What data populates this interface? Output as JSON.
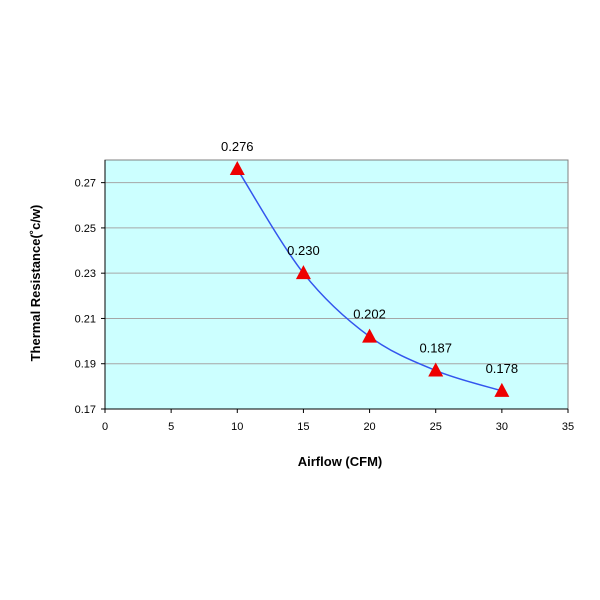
{
  "chart_data": {
    "type": "line",
    "xlabel": "Airflow (CFM)",
    "ylabel": "Thermal Resistance(˚c/w)",
    "xlim": [
      0,
      35
    ],
    "ylim": [
      0.17,
      0.28
    ],
    "x_ticks": [
      0,
      5,
      10,
      15,
      20,
      25,
      30,
      35
    ],
    "x_tick_labels": [
      "0",
      "5",
      "10",
      "15",
      "20",
      "25",
      "30",
      "35"
    ],
    "y_ticks": [
      0.17,
      0.19,
      0.21,
      0.23,
      0.25,
      0.27
    ],
    "y_tick_labels": [
      "0.17",
      "0.19",
      "0.21",
      "0.23",
      "0.25",
      "0.27"
    ],
    "grid": "horizontal",
    "legend": "none",
    "series": [
      {
        "x": [
          10,
          15,
          20,
          25,
          30
        ],
        "y": [
          0.276,
          0.23,
          0.202,
          0.187,
          0.178
        ],
        "data_labels": [
          "0.276",
          "0.230",
          "0.202",
          "0.187",
          "0.178"
        ],
        "line_color": "#3355ee",
        "marker": "triangle",
        "marker_color": "#ee0000"
      }
    ],
    "plot_background": "#ccffff"
  }
}
